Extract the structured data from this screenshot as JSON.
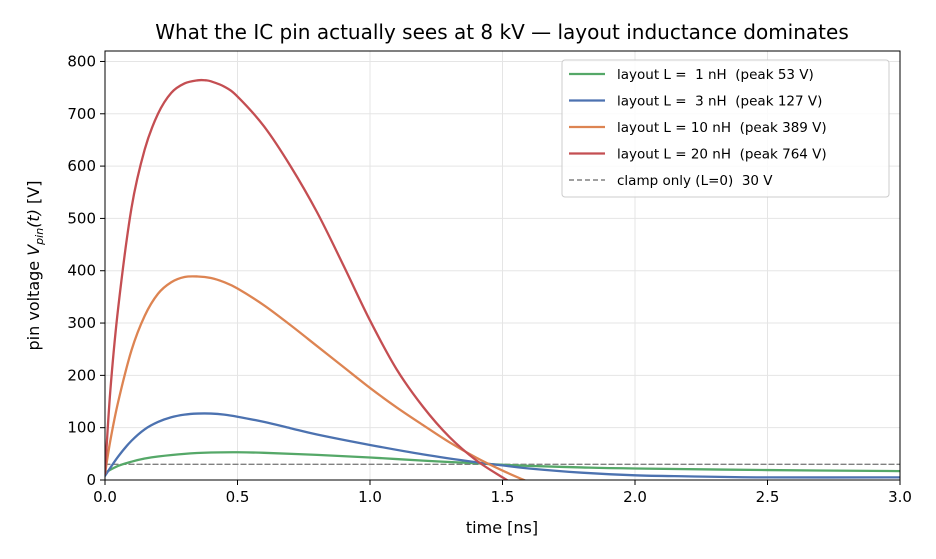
{
  "chart_data": {
    "type": "line",
    "title": "What the IC pin actually sees at 8 kV  —  layout inductance dominates",
    "xlabel": "time  [ns]",
    "ylabel": {
      "prefix": "pin voltage  ",
      "var": "V",
      "sub": "pin",
      "arg": "(t)",
      "unit": "  [V]"
    },
    "xlim": [
      0,
      3
    ],
    "ylim": [
      0,
      820
    ],
    "xticks": [
      0.0,
      0.5,
      1.0,
      1.5,
      2.0,
      2.5,
      3.0
    ],
    "xtick_labels": [
      "0.0",
      "0.5",
      "1.0",
      "1.5",
      "2.0",
      "2.5",
      "3.0"
    ],
    "yticks": [
      0,
      100,
      200,
      300,
      400,
      500,
      600,
      700,
      800
    ],
    "ytick_labels": [
      "0",
      "100",
      "200",
      "300",
      "400",
      "500",
      "600",
      "700",
      "800"
    ],
    "grid": true,
    "legend_position": "top-right",
    "series": [
      {
        "name": "layout L =  1 nH  (peak 53 V)",
        "color": "#55a868",
        "style": "solid",
        "x": [
          0,
          0.05,
          0.1,
          0.15,
          0.2,
          0.3,
          0.4,
          0.5,
          0.6,
          0.8,
          1.0,
          1.2,
          1.4,
          1.5,
          1.6,
          1.8,
          2.0,
          2.5,
          3.0
        ],
        "y": [
          14,
          27,
          35,
          41,
          45,
          50,
          52.5,
          53,
          52,
          48,
          43,
          37,
          32,
          29,
          27,
          24,
          22,
          19,
          17
        ]
      },
      {
        "name": "layout L =  3 nH  (peak 127 V)",
        "color": "#4c72b0",
        "style": "solid",
        "x": [
          0,
          0.05,
          0.1,
          0.15,
          0.2,
          0.25,
          0.3,
          0.35,
          0.4,
          0.45,
          0.5,
          0.6,
          0.7,
          0.8,
          1.0,
          1.2,
          1.4,
          1.5,
          1.6,
          1.8,
          2.0,
          2.2,
          2.5,
          3.0
        ],
        "y": [
          8,
          45,
          75,
          97,
          111,
          120,
          125,
          127,
          127,
          125,
          121,
          111,
          99,
          87,
          67,
          49,
          34,
          28,
          22,
          14,
          9,
          7,
          5,
          5
        ]
      },
      {
        "name": "layout L = 10 nH  (peak 389 V)",
        "color": "#dd8452",
        "style": "solid",
        "x": [
          0,
          0.02,
          0.05,
          0.1,
          0.15,
          0.2,
          0.25,
          0.3,
          0.35,
          0.4,
          0.45,
          0.5,
          0.6,
          0.7,
          0.8,
          0.9,
          1.0,
          1.1,
          1.2,
          1.3,
          1.4,
          1.5,
          1.6,
          1.7
        ],
        "y": [
          12,
          75,
          150,
          248,
          314,
          356,
          378,
          388,
          389,
          386,
          378,
          366,
          334,
          296,
          256,
          216,
          176,
          139,
          105,
          72,
          43,
          18,
          -4,
          -24
        ]
      },
      {
        "name": "layout L = 20 nH  (peak 764 V)",
        "color": "#c44e52",
        "style": "solid",
        "x": [
          0,
          0.02,
          0.05,
          0.1,
          0.15,
          0.2,
          0.25,
          0.3,
          0.35,
          0.38,
          0.4,
          0.45,
          0.5,
          0.6,
          0.7,
          0.8,
          0.9,
          1.0,
          1.1,
          1.2,
          1.3,
          1.4,
          1.5,
          1.6
        ],
        "y": [
          12,
          170,
          330,
          520,
          632,
          700,
          740,
          758,
          764,
          764,
          762,
          752,
          733,
          676,
          600,
          512,
          410,
          305,
          212,
          140,
          82,
          38,
          5,
          -25
        ]
      },
      {
        "name": "clamp only (L=0)  30 V",
        "color": "#808080",
        "style": "dashed",
        "x": [
          0,
          3
        ],
        "y": [
          30,
          30
        ]
      }
    ]
  }
}
